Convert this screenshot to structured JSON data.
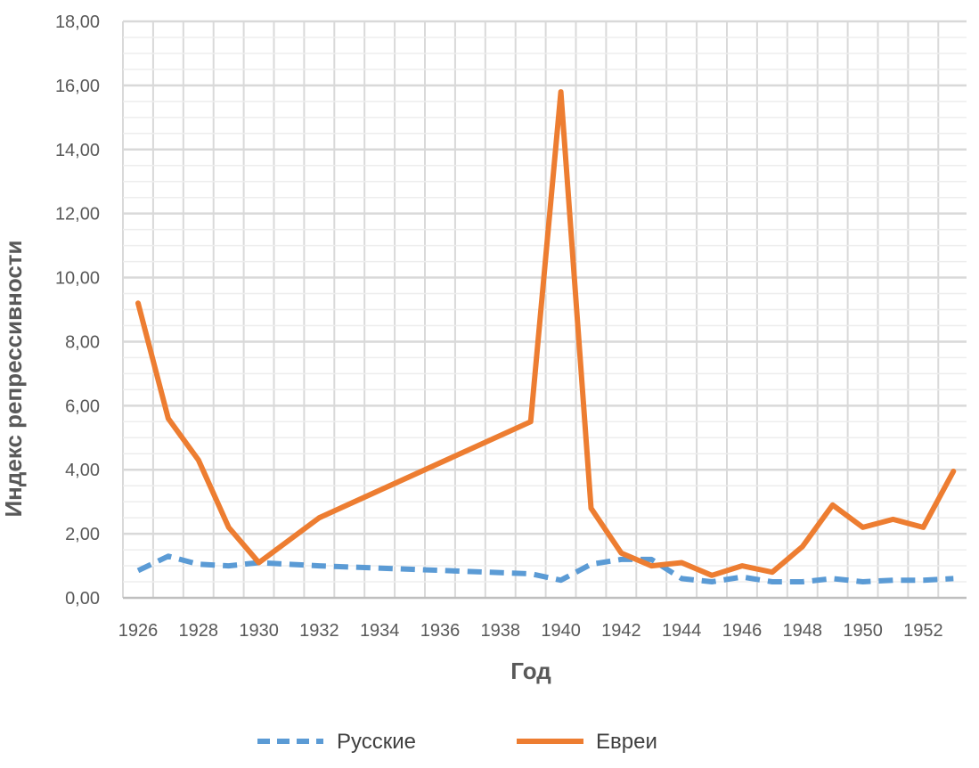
{
  "chart_data": {
    "type": "line",
    "xlabel": "Год",
    "ylabel": "Индекс репрессивности",
    "ylim": [
      0,
      18
    ],
    "yticks": [
      "0,00",
      "2,00",
      "4,00",
      "6,00",
      "8,00",
      "10,00",
      "12,00",
      "14,00",
      "16,00",
      "18,00"
    ],
    "xlim": [
      1926,
      1953
    ],
    "xticks": [
      "1926",
      "1928",
      "1930",
      "1932",
      "1934",
      "1936",
      "1938",
      "1940",
      "1942",
      "1944",
      "1946",
      "1948",
      "1950",
      "1952"
    ],
    "grid": true,
    "legend_position": "bottom",
    "series": [
      {
        "name": "Русские",
        "color": "#5B9BD5",
        "style": "dashed",
        "x": [
          1926,
          1927,
          1928,
          1929,
          1930,
          1932,
          1939,
          1940,
          1941,
          1942,
          1943,
          1944,
          1945,
          1946,
          1947,
          1948,
          1949,
          1950,
          1951,
          1952,
          1953
        ],
        "values": [
          0.85,
          1.3,
          1.05,
          1.0,
          1.1,
          1.0,
          0.75,
          0.55,
          1.05,
          1.2,
          1.2,
          0.6,
          0.5,
          0.65,
          0.5,
          0.5,
          0.6,
          0.5,
          0.55,
          0.55,
          0.6
        ]
      },
      {
        "name": "Евреи",
        "color": "#ED7D31",
        "style": "solid",
        "x": [
          1926,
          1927,
          1928,
          1929,
          1930,
          1932,
          1939,
          1940,
          1941,
          1942,
          1943,
          1944,
          1945,
          1946,
          1947,
          1948,
          1949,
          1950,
          1951,
          1952,
          1953
        ],
        "values": [
          9.2,
          5.6,
          4.3,
          2.2,
          1.1,
          2.5,
          5.5,
          15.8,
          2.8,
          1.4,
          1.0,
          1.1,
          0.7,
          1.0,
          0.8,
          1.6,
          2.9,
          2.2,
          2.45,
          2.2,
          3.95
        ]
      }
    ]
  }
}
